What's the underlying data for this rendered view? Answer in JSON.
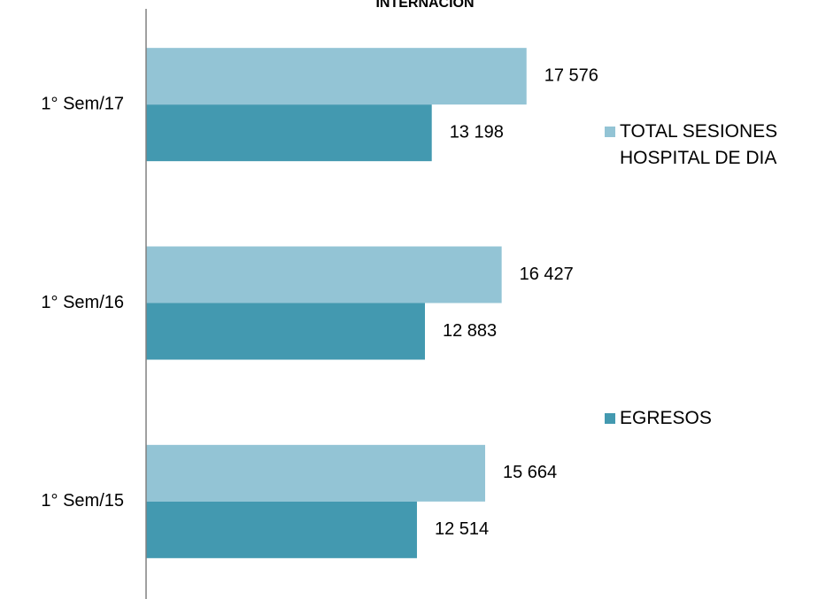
{
  "chart_data": {
    "type": "bar",
    "orientation": "horizontal",
    "title": "INTERNACION",
    "categories": [
      "1° Sem/17",
      "1° Sem/16",
      "1° Sem/15"
    ],
    "series": [
      {
        "name": "TOTAL SESIONES HOSPITAL DE DIA",
        "color": "#93c4d5",
        "values": [
          17576,
          16427,
          15664
        ],
        "value_labels": [
          "17 576",
          "16 427",
          "15 664"
        ]
      },
      {
        "name": "EGRESOS",
        "color": "#4399b0",
        "values": [
          13198,
          12883,
          12514
        ],
        "value_labels": [
          "13 198",
          "12 883",
          "12 514"
        ]
      }
    ],
    "xlim": [
      0,
      20000
    ]
  }
}
